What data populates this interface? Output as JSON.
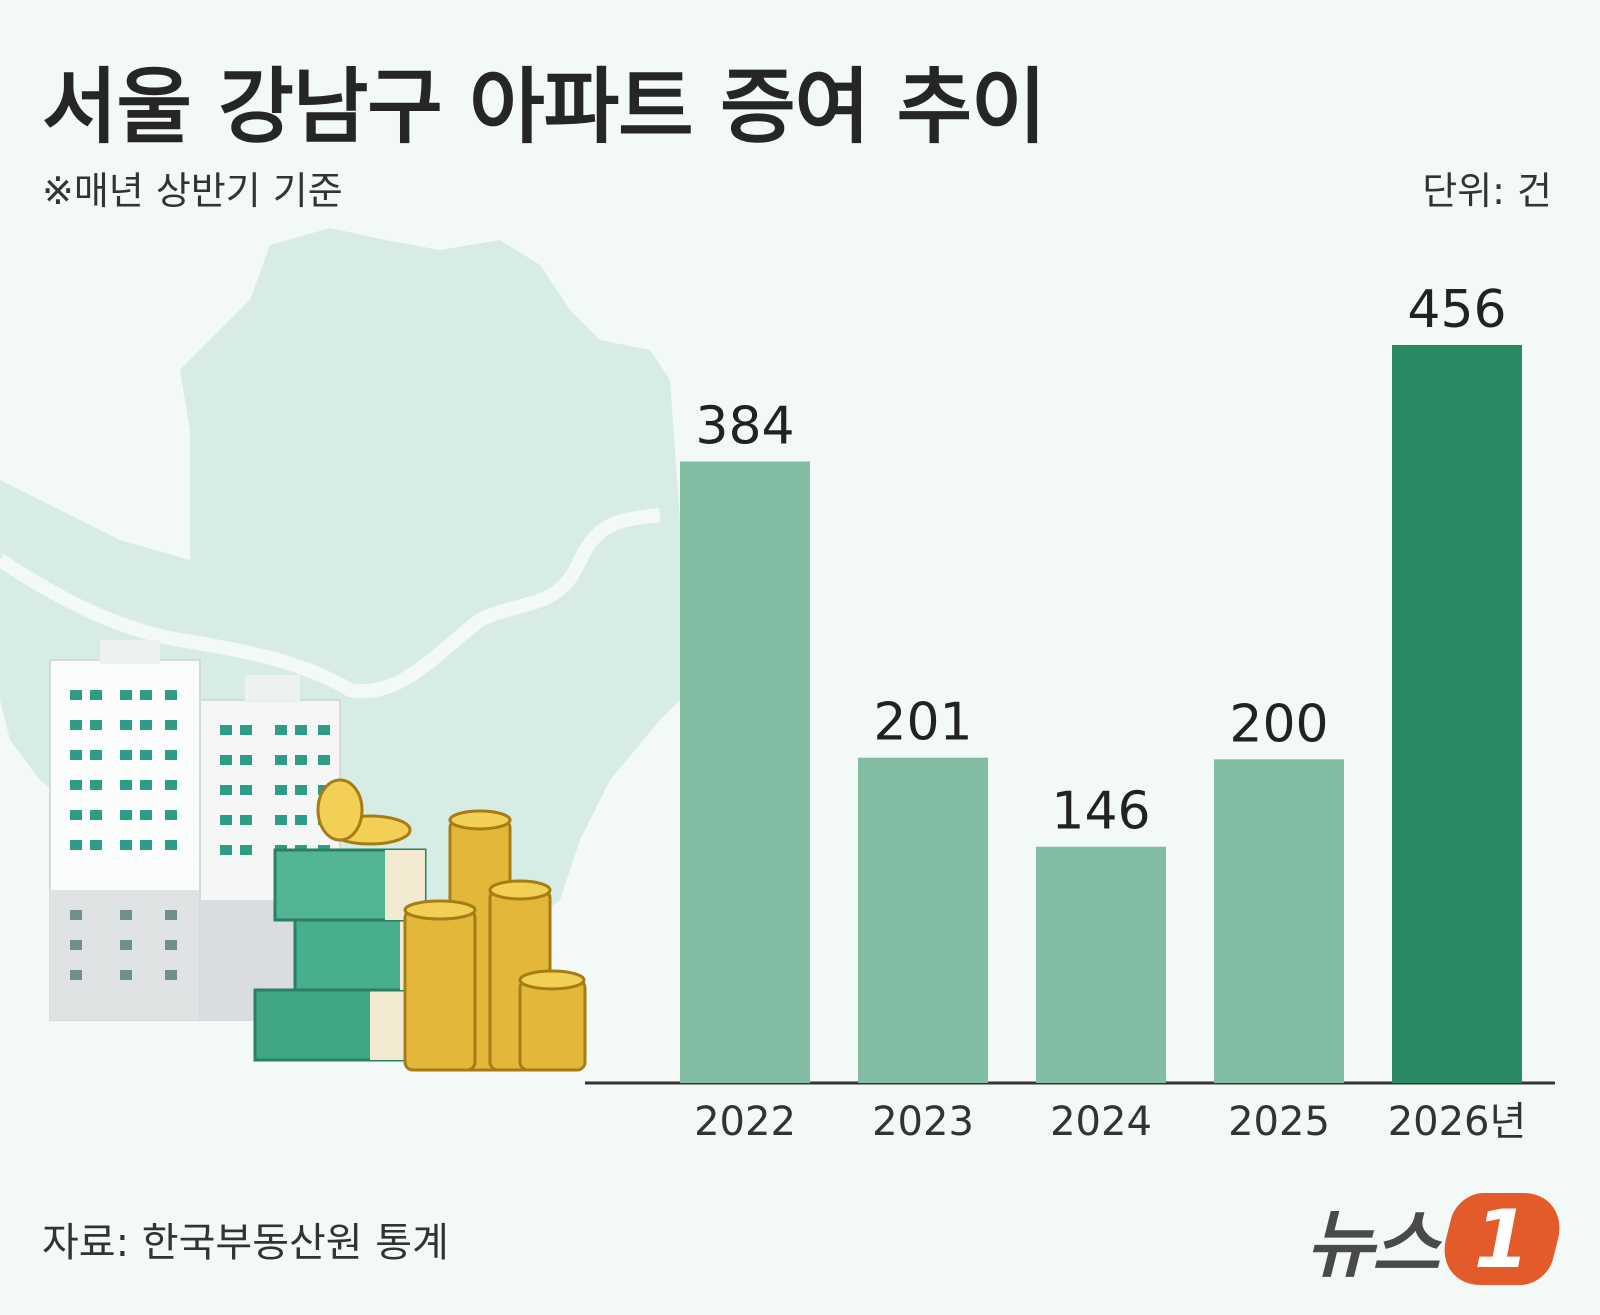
{
  "header": {
    "title": "서울 강남구 아파트 증여 추이",
    "subtitle": "※매년 상반기 기준",
    "unit": "단위: 건"
  },
  "footer": {
    "source": "자료: 한국부동산원 통계",
    "logo_text": "뉴스",
    "logo_badge": "1"
  },
  "colors": {
    "bar": "#82bca3",
    "bar_highlight": "#2a8a64",
    "map": "#d6ece4",
    "axis": "#333333"
  },
  "chart_data": {
    "type": "bar",
    "categories": [
      "2022",
      "2023",
      "2024",
      "2025",
      "2026년"
    ],
    "values": [
      384,
      201,
      146,
      200,
      456
    ],
    "highlight_index": 4,
    "ylim": [
      0,
      456
    ],
    "grid": false,
    "legend": "none",
    "title": "",
    "xlabel": "",
    "ylabel": ""
  }
}
